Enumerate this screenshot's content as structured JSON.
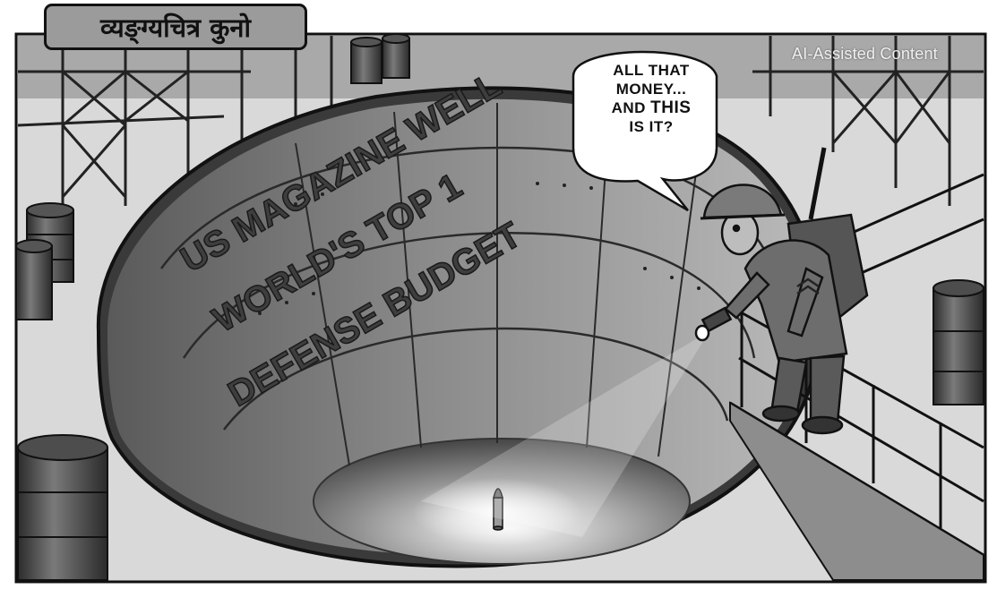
{
  "section_tag": "व्यङ्ग्यचित्र कुनो",
  "watermark": "AI-Assisted Content",
  "pit_text": {
    "line1": "US MAGAZINE WELL",
    "line2": "WORLD'S TOP 1",
    "line3": "DEFENSE BUDGET"
  },
  "speech_bubble": {
    "line1": "ALL THAT",
    "line2": "MONEY...",
    "line3a": "AND ",
    "line3b": "THIS",
    "line4": "IS IT?"
  },
  "colors": {
    "tag_background": "#9b9b9b",
    "ink": "#111111",
    "floor": "#d9d9d9"
  }
}
